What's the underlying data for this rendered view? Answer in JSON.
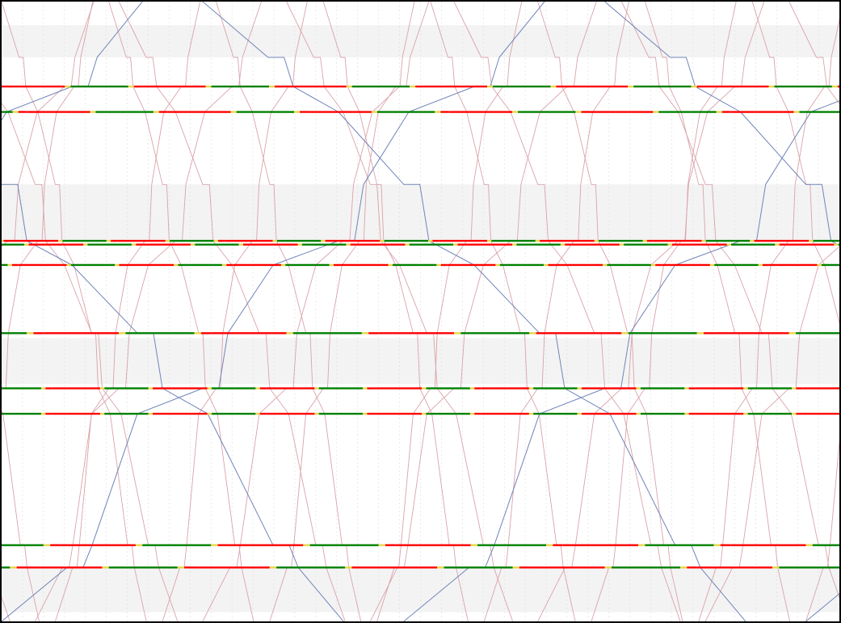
{
  "chart_data": {
    "type": "line",
    "title": "",
    "xlabel": "",
    "ylabel": "",
    "grid": true,
    "colors": {
      "band": "#f3f3f3",
      "grid": "#dcdcdc",
      "red_trip": "#d9a3ab",
      "blue_trip": "#7084b8",
      "signal_red": "#ff0000",
      "signal_green": "#008000",
      "signal_amber": "#e8d84a",
      "frame": "#000000"
    },
    "x_range": [
      0,
      1
    ],
    "y_range": [
      0,
      1
    ],
    "bands": [
      [
        0.038,
        0.09
      ],
      [
        0.295,
        0.385
      ],
      [
        0.543,
        0.617
      ],
      [
        0.912,
        0.985
      ]
    ],
    "signal_lines": [
      {
        "y": 0.137,
        "period": 0.168,
        "phase": 0.0
      },
      {
        "y": 0.178,
        "period": 0.168,
        "phase": 0.03
      },
      {
        "y": 0.386,
        "period": 0.128,
        "phase": 0.01
      },
      {
        "y": 0.392,
        "period": 0.128,
        "phase": 0.04
      },
      {
        "y": 0.425,
        "period": 0.128,
        "phase": 0.02
      },
      {
        "y": 0.535,
        "period": 0.2,
        "phase": 0.05
      },
      {
        "y": 0.624,
        "period": 0.128,
        "phase": 0.06
      },
      {
        "y": 0.665,
        "period": 0.128,
        "phase": 0.06
      },
      {
        "y": 0.877,
        "period": 0.2,
        "phase": 0.07
      },
      {
        "y": 0.913,
        "period": 0.2,
        "phase": 0.03
      }
    ],
    "series": [
      {
        "color_key": "red_trip",
        "period": 0.128,
        "phase": 0.0,
        "direction": "down"
      },
      {
        "color_key": "red_trip",
        "period": 0.128,
        "phase": 0.064,
        "direction": "up"
      },
      {
        "color_key": "red_trip",
        "period": 0.2,
        "phase": 0.04,
        "direction": "up"
      },
      {
        "color_key": "red_trip",
        "period": 0.2,
        "phase": 0.14,
        "direction": "down"
      },
      {
        "color_key": "blue_trip",
        "period": 0.48,
        "phase": 0.0,
        "direction": "up"
      },
      {
        "color_key": "blue_trip",
        "period": 0.48,
        "phase": 0.24,
        "direction": "down"
      }
    ]
  }
}
